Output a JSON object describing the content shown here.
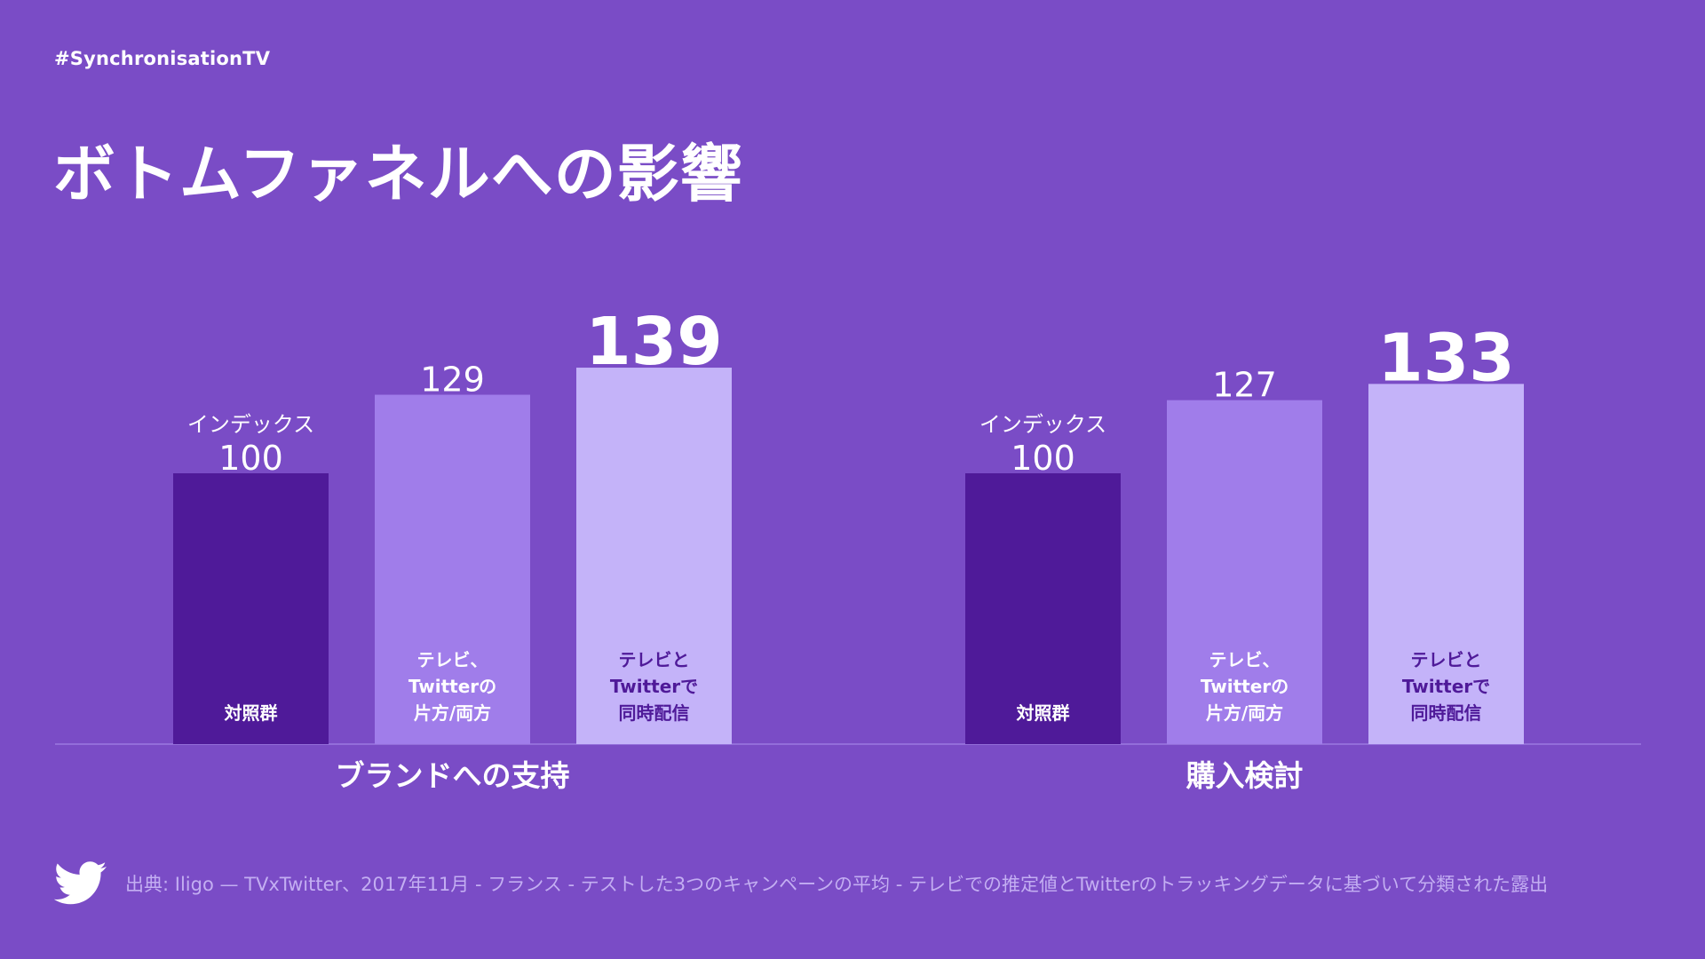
{
  "header": {
    "hashtag": "#SynchronisationTV",
    "title": "ボトムファネルへの影響"
  },
  "chart_data": {
    "type": "bar",
    "ylim": [
      0,
      160
    ],
    "groups": [
      {
        "name": "ブランドへの支持",
        "bars": [
          {
            "value": 100,
            "value_label": "100",
            "top_note": "インデックス",
            "label_lines": [
              "対照群"
            ]
          },
          {
            "value": 129,
            "value_label": "129",
            "top_note": "",
            "label_lines": [
              "テレビ、",
              "Twitterの",
              "片方/両方"
            ]
          },
          {
            "value": 139,
            "value_label": "139",
            "top_note": "",
            "label_lines": [
              "テレビと",
              "Twitterで",
              "同時配信"
            ]
          }
        ]
      },
      {
        "name": "購入検討",
        "bars": [
          {
            "value": 100,
            "value_label": "100",
            "top_note": "インデックス",
            "label_lines": [
              "対照群"
            ]
          },
          {
            "value": 127,
            "value_label": "127",
            "top_note": "",
            "label_lines": [
              "テレビ、",
              "Twitterの",
              "片方/両方"
            ]
          },
          {
            "value": 133,
            "value_label": "133",
            "top_note": "",
            "label_lines": [
              "テレビと",
              "Twitterで",
              "同時配信"
            ]
          }
        ]
      }
    ],
    "colors": [
      "#4f1a99",
      "#a07dea",
      "#c4b3f9"
    ],
    "label_colors": [
      "#ffffff",
      "#ffffff",
      "#4f1a99"
    ],
    "grid": false,
    "legend": "none"
  },
  "footer": {
    "icon": "twitter-bird-icon",
    "source": "出典: Iligo — TVxTwitter、2017年11月 - フランス - テストした3つのキャンペーンの平均 - テレビでの推定値とTwitterのトラッキングデータに基づいて分類された露出"
  }
}
